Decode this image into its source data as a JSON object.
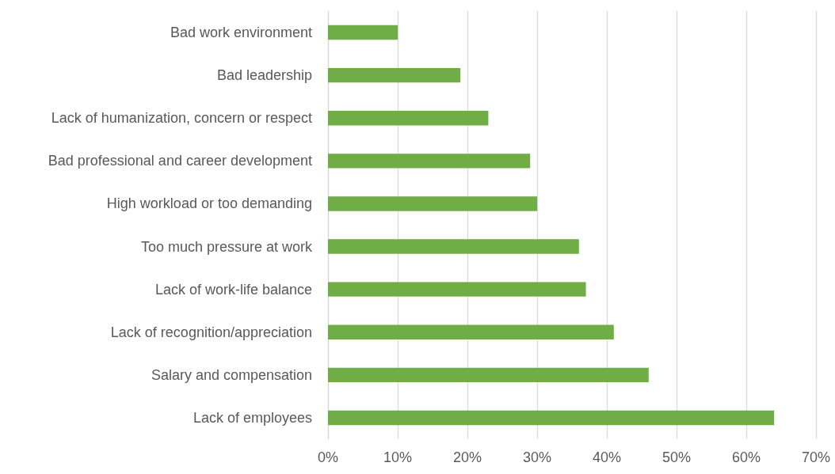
{
  "chart_data": {
    "type": "bar",
    "orientation": "horizontal",
    "categories": [
      "Bad work environment",
      "Bad leadership",
      "Lack of humanization, concern or respect",
      "Bad professional and career development",
      "High workload or too demanding",
      "Too much pressure at work",
      "Lack of work-life balance",
      "Lack of recognition/appreciation",
      "Salary and compensation",
      "Lack of employees"
    ],
    "values": [
      10,
      19,
      23,
      29,
      30,
      36,
      37,
      41,
      46,
      64
    ],
    "color": "#70ad47",
    "xlim": [
      0,
      70
    ],
    "xticks": [
      {
        "value": 0,
        "label": "0%"
      },
      {
        "value": 10,
        "label": "10%"
      },
      {
        "value": 20,
        "label": "20%"
      },
      {
        "value": 30,
        "label": "30%"
      },
      {
        "value": 40,
        "label": "40%"
      },
      {
        "value": 50,
        "label": "50%"
      },
      {
        "value": 60,
        "label": "60%"
      },
      {
        "value": 70,
        "label": "70%"
      }
    ],
    "grid": "x"
  }
}
